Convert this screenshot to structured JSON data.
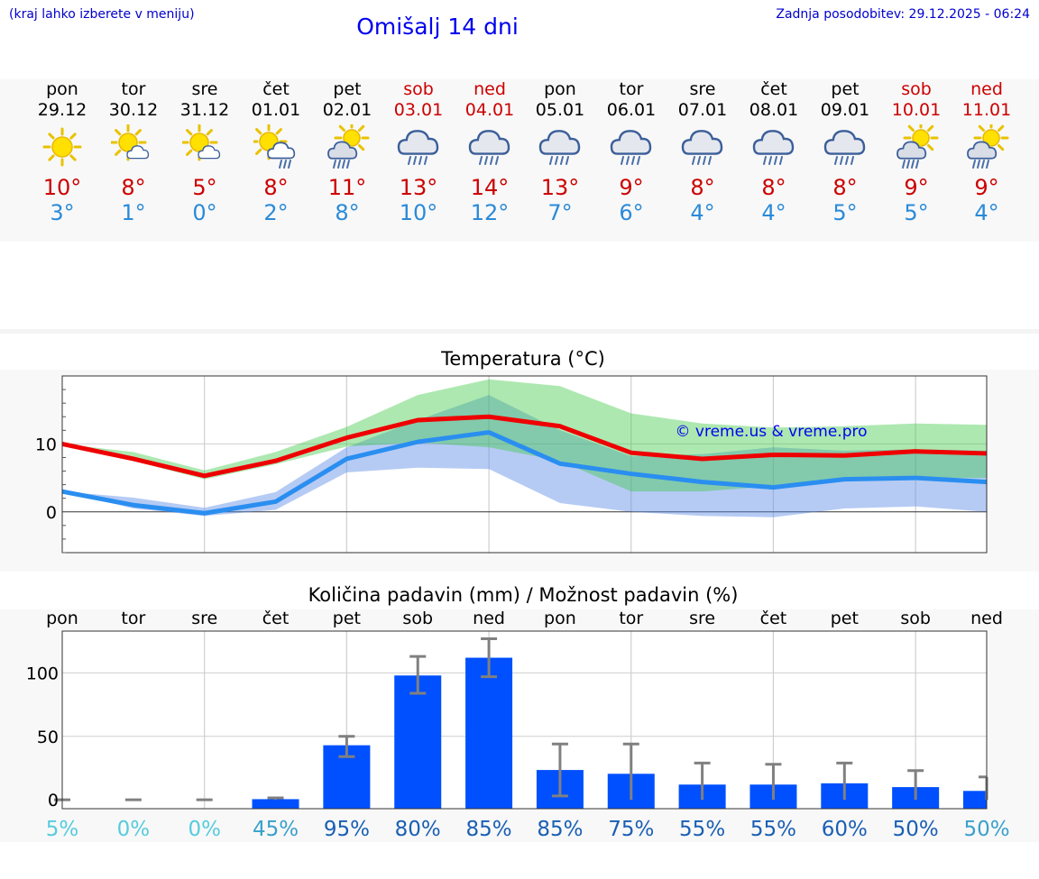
{
  "header": {
    "menu_hint": "(kraj lahko izberete v meniju)",
    "title": "Omišalj 14 dni",
    "updated": "Zadnja posodobitev: 29.12.2025 - 06:24"
  },
  "colors": {
    "max": "#cc0000",
    "min": "#2a8ad8",
    "bar": "#0050ff",
    "accent_title": "#0000ee"
  },
  "forecast": [
    {
      "day": "pon",
      "date": "29.12",
      "icon": "sun",
      "max": "10°",
      "min": "3°",
      "weekend": false
    },
    {
      "day": "tor",
      "date": "30.12",
      "icon": "sun-cloud",
      "max": "8°",
      "min": "1°",
      "weekend": false
    },
    {
      "day": "sre",
      "date": "31.12",
      "icon": "sun-cloud",
      "max": "5°",
      "min": "0°",
      "weekend": false
    },
    {
      "day": "čet",
      "date": "01.01",
      "icon": "sun-cloud-rain",
      "max": "8°",
      "min": "2°",
      "weekend": false
    },
    {
      "day": "pet",
      "date": "02.01",
      "icon": "sun-dark-cloud-rain",
      "max": "11°",
      "min": "8°",
      "weekend": false
    },
    {
      "day": "sob",
      "date": "03.01",
      "icon": "cloud-rain",
      "max": "13°",
      "min": "10°",
      "weekend": true
    },
    {
      "day": "ned",
      "date": "04.01",
      "icon": "cloud-rain",
      "max": "14°",
      "min": "12°",
      "weekend": true
    },
    {
      "day": "pon",
      "date": "05.01",
      "icon": "cloud-rain",
      "max": "13°",
      "min": "7°",
      "weekend": false
    },
    {
      "day": "tor",
      "date": "06.01",
      "icon": "cloud-rain",
      "max": "9°",
      "min": "6°",
      "weekend": false
    },
    {
      "day": "sre",
      "date": "07.01",
      "icon": "cloud-rain",
      "max": "8°",
      "min": "4°",
      "weekend": false
    },
    {
      "day": "čet",
      "date": "08.01",
      "icon": "cloud-rain",
      "max": "8°",
      "min": "4°",
      "weekend": false
    },
    {
      "day": "pet",
      "date": "09.01",
      "icon": "cloud-rain",
      "max": "8°",
      "min": "5°",
      "weekend": false
    },
    {
      "day": "sob",
      "date": "10.01",
      "icon": "sun-dark-cloud-rain",
      "max": "9°",
      "min": "5°",
      "weekend": true
    },
    {
      "day": "ned",
      "date": "11.01",
      "icon": "sun-dark-cloud-rain",
      "max": "9°",
      "min": "4°",
      "weekend": true
    }
  ],
  "chart_data": [
    {
      "type": "line",
      "title": "Temperatura (°C)",
      "watermark": "© vreme.us & vreme.pro",
      "ylim": [
        -6,
        20
      ],
      "yticks": [
        "0",
        "10"
      ],
      "x_count": 14,
      "series": [
        {
          "name": "max",
          "values": [
            10,
            7.8,
            5.3,
            7.5,
            10.9,
            13.5,
            14.0,
            12.6,
            8.7,
            7.8,
            8.4,
            8.3,
            8.9,
            8.6
          ]
        },
        {
          "name": "min",
          "values": [
            3.0,
            1.0,
            -0.2,
            1.5,
            7.8,
            10.3,
            11.7,
            7.1,
            5.6,
            4.4,
            3.6,
            4.8,
            5.0,
            4.4
          ]
        },
        {
          "name": "max_band_low",
          "values": [
            10,
            7.5,
            4.8,
            7.0,
            9.6,
            10.2,
            9.5,
            7.5,
            3.0,
            3.0,
            3.8,
            4.5,
            5.0,
            5.0
          ]
        },
        {
          "name": "max_band_high",
          "values": [
            10,
            8.8,
            6.1,
            8.8,
            12.5,
            17.2,
            19.5,
            18.5,
            14.5,
            13.0,
            12.4,
            12.6,
            13.0,
            12.8
          ]
        },
        {
          "name": "min_band_low",
          "values": [
            3.0,
            0.5,
            -0.6,
            0.3,
            5.8,
            6.5,
            6.3,
            1.3,
            0.0,
            -0.6,
            -0.8,
            0.5,
            0.8,
            0.0
          ]
        },
        {
          "name": "min_band_high",
          "values": [
            3.0,
            2.1,
            0.6,
            2.9,
            9.5,
            13.5,
            17.2,
            12.0,
            8.2,
            8.5,
            9.5,
            9.0,
            9.2,
            9.0
          ]
        }
      ]
    },
    {
      "type": "bar",
      "title": "Količina padavin (mm) / Možnost padavin (%)",
      "ylim": [
        -7,
        133
      ],
      "yticks": [
        "0",
        "50",
        "100"
      ],
      "categories": [
        "pon",
        "tor",
        "sre",
        "čet",
        "pet",
        "sob",
        "ned",
        "pon",
        "tor",
        "sre",
        "čet",
        "pet",
        "sob",
        "ned"
      ],
      "values": [
        0,
        0,
        0,
        0.5,
        43,
        98,
        112,
        23.5,
        20.5,
        12,
        12,
        13,
        10,
        7
      ],
      "error_low": [
        0,
        0,
        0,
        0,
        34,
        84,
        97,
        3,
        0,
        0,
        0,
        0,
        0,
        0
      ],
      "error_high": [
        0,
        0,
        0,
        1.5,
        50,
        113,
        127,
        44,
        44,
        29,
        28,
        29,
        23,
        18
      ],
      "probability": [
        "5%",
        "0%",
        "0%",
        "45%",
        "95%",
        "80%",
        "85%",
        "85%",
        "75%",
        "55%",
        "55%",
        "60%",
        "50%",
        "50%"
      ],
      "probability_colors": [
        "#55ccdd",
        "#55ccdd",
        "#55ccdd",
        "#3aa0cc",
        "#1a5fb4",
        "#1a5fb4",
        "#1a5fb4",
        "#1a5fb4",
        "#1a5fb4",
        "#1a5fb4",
        "#1a5fb4",
        "#1a5fb4",
        "#1a5fb4",
        "#3aa0cc"
      ]
    }
  ]
}
